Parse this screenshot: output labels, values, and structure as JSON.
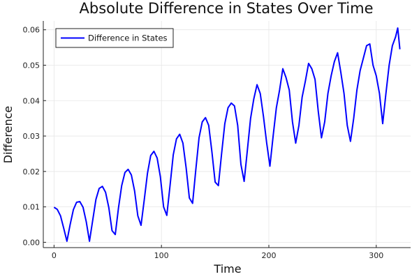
{
  "chart_data": {
    "type": "line",
    "title": "Absolute Difference in States Over Time",
    "xlabel": "Time",
    "ylabel": "Difference",
    "xlim": [
      -10,
      332
    ],
    "ylim": [
      -0.0015,
      0.0625
    ],
    "xticks": [
      0,
      100,
      200,
      300
    ],
    "yticks": [
      0.0,
      0.01,
      0.02,
      0.03,
      0.04,
      0.05,
      0.06
    ],
    "ytick_labels": [
      "0.00",
      "0.01",
      "0.02",
      "0.03",
      "0.04",
      "0.05",
      "0.06"
    ],
    "grid": true,
    "legend_position": "top-left",
    "series": [
      {
        "name": "Difference in States",
        "color": "#0000ff",
        "x": [
          0,
          3,
          6,
          9,
          12,
          15,
          18,
          21,
          24,
          27,
          30,
          33,
          36,
          39,
          42,
          45,
          48,
          51,
          54,
          57,
          60,
          63,
          66,
          69,
          72,
          75,
          78,
          81,
          84,
          87,
          90,
          93,
          96,
          99,
          102,
          105,
          108,
          111,
          114,
          117,
          120,
          123,
          126,
          129,
          132,
          135,
          138,
          141,
          144,
          147,
          150,
          153,
          156,
          159,
          162,
          165,
          168,
          171,
          174,
          177,
          180,
          183,
          186,
          189,
          192,
          195,
          198,
          201,
          204,
          207,
          210,
          213,
          216,
          219,
          222,
          225,
          228,
          231,
          234,
          237,
          240,
          243,
          246,
          249,
          252,
          255,
          258,
          261,
          264,
          267,
          270,
          273,
          276,
          279,
          282,
          285,
          288,
          291,
          294,
          297,
          300,
          303,
          306,
          309,
          312,
          315,
          318,
          320,
          322
        ],
        "values": [
          0.0099,
          0.0093,
          0.0075,
          0.004,
          0.0003,
          0.005,
          0.0092,
          0.0113,
          0.0115,
          0.0099,
          0.0058,
          0.0003,
          0.0062,
          0.0121,
          0.0152,
          0.0158,
          0.0141,
          0.0098,
          0.0033,
          0.0022,
          0.0097,
          0.016,
          0.0197,
          0.0206,
          0.019,
          0.0145,
          0.0075,
          0.0048,
          0.012,
          0.0195,
          0.0245,
          0.0257,
          0.0238,
          0.0185,
          0.01,
          0.0076,
          0.016,
          0.0247,
          0.0292,
          0.0305,
          0.028,
          0.021,
          0.0125,
          0.011,
          0.0205,
          0.0295,
          0.034,
          0.0352,
          0.033,
          0.0255,
          0.017,
          0.016,
          0.025,
          0.0335,
          0.038,
          0.0393,
          0.0385,
          0.033,
          0.022,
          0.0172,
          0.026,
          0.035,
          0.0405,
          0.0445,
          0.042,
          0.0355,
          0.028,
          0.0215,
          0.03,
          0.038,
          0.043,
          0.049,
          0.0465,
          0.043,
          0.034,
          0.028,
          0.033,
          0.041,
          0.0455,
          0.0505,
          0.049,
          0.046,
          0.037,
          0.0295,
          0.034,
          0.042,
          0.047,
          0.051,
          0.0535,
          0.048,
          0.042,
          0.033,
          0.0285,
          0.035,
          0.043,
          0.0485,
          0.052,
          0.0555,
          0.056,
          0.05,
          0.047,
          0.042,
          0.0335,
          0.042,
          0.05,
          0.0555,
          0.058,
          0.0605,
          0.0545
        ]
      }
    ]
  }
}
